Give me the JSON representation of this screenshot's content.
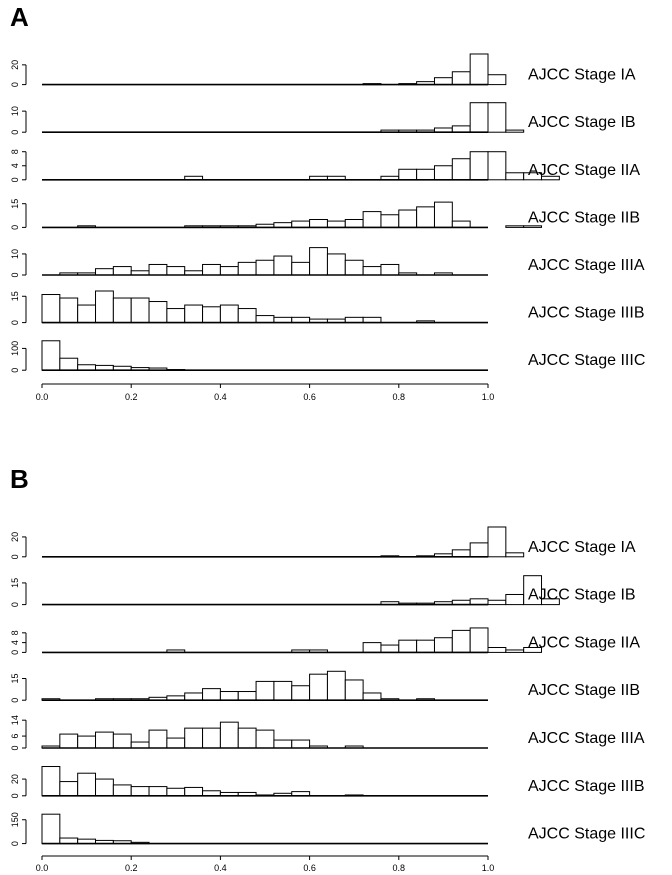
{
  "panels": [
    {
      "label": "A"
    },
    {
      "label": "B"
    }
  ],
  "chart_data": [
    {
      "type": "histogram-stack",
      "panel": "A",
      "xlim": [
        0,
        1
      ],
      "bin_width": 0.04,
      "x_ticks": [
        "0.0",
        "0.2",
        "0.4",
        "0.6",
        "0.8",
        "1.0"
      ],
      "x_tick_values": [
        0,
        0.2,
        0.4,
        0.6,
        0.8,
        1.0
      ],
      "series": [
        {
          "name": "AJCC Stage IA",
          "ymax": 32,
          "y_ticks": [
            0,
            20
          ],
          "values": [
            0,
            0,
            0,
            0,
            0,
            0,
            0,
            0,
            0,
            0,
            0,
            0,
            0,
            0,
            0,
            0,
            0,
            0,
            1,
            0,
            1,
            3,
            7,
            13,
            31,
            10
          ]
        },
        {
          "name": "AJCC Stage IB",
          "ymax": 15,
          "y_ticks": [
            0,
            10
          ],
          "values": [
            0,
            0,
            0,
            0,
            0,
            0,
            0,
            0,
            0,
            0,
            0,
            0,
            0,
            0,
            0,
            0,
            0,
            0,
            0,
            1,
            1,
            1,
            2,
            3,
            14,
            14,
            1
          ]
        },
        {
          "name": "AJCC Stage IIA",
          "ymax": 9,
          "y_ticks": [
            0,
            4,
            8
          ],
          "values": [
            0,
            0,
            0,
            0,
            0,
            0,
            0,
            0,
            1,
            0,
            0,
            0,
            0,
            0,
            0,
            1,
            1,
            0,
            0,
            1,
            3,
            3,
            4,
            6,
            8,
            8,
            2,
            2,
            1
          ]
        },
        {
          "name": "AJCC Stage IIB",
          "ymax": 20,
          "y_ticks": [
            0,
            15
          ],
          "values": [
            0,
            0,
            1,
            0,
            0,
            0,
            0,
            0,
            1,
            1,
            1,
            1,
            2,
            3,
            4,
            5,
            4,
            5,
            10,
            8,
            11,
            13,
            16,
            4,
            0,
            0,
            1,
            1
          ]
        },
        {
          "name": "AJCC Stage IIIA",
          "ymax": 15,
          "y_ticks": [
            0,
            10
          ],
          "values": [
            0,
            1,
            1,
            3,
            4,
            2,
            5,
            4,
            2,
            5,
            4,
            6,
            7,
            9,
            6,
            13,
            10,
            7,
            4,
            5,
            1,
            0,
            1,
            0,
            0
          ]
        },
        {
          "name": "AJCC Stage IIIB",
          "ymax": 18,
          "y_ticks": [
            0,
            15
          ],
          "values": [
            16,
            14,
            10,
            18,
            14,
            14,
            12,
            8,
            10,
            9,
            10,
            8,
            4,
            3,
            3,
            2,
            2,
            3,
            3,
            0,
            0,
            1
          ]
        },
        {
          "name": "AJCC Stage IIIC",
          "ymax": 145,
          "y_ticks": [
            0,
            100
          ],
          "values": [
            135,
            55,
            25,
            22,
            18,
            12,
            10,
            3
          ]
        }
      ]
    },
    {
      "type": "histogram-stack",
      "panel": "B",
      "xlim": [
        0,
        1
      ],
      "bin_width": 0.04,
      "x_ticks": [
        "0.0",
        "0.2",
        "0.4",
        "0.6",
        "0.8",
        "1.0"
      ],
      "x_tick_values": [
        0,
        0.2,
        0.4,
        0.6,
        0.8,
        1.0
      ],
      "series": [
        {
          "name": "AJCC Stage IA",
          "ymax": 32,
          "y_ticks": [
            0,
            20
          ],
          "values": [
            0,
            0,
            0,
            0,
            0,
            0,
            0,
            0,
            0,
            0,
            0,
            0,
            0,
            0,
            0,
            0,
            0,
            0,
            0,
            1,
            0,
            1,
            3,
            7,
            14,
            30,
            4
          ]
        },
        {
          "name": "AJCC Stage IB",
          "ymax": 22,
          "y_ticks": [
            0,
            15
          ],
          "values": [
            0,
            0,
            0,
            0,
            0,
            0,
            0,
            0,
            0,
            0,
            0,
            0,
            0,
            0,
            0,
            0,
            0,
            0,
            0,
            2,
            1,
            1,
            2,
            3,
            4,
            3,
            7,
            20,
            4
          ]
        },
        {
          "name": "AJCC Stage IIA",
          "ymax": 13,
          "y_ticks": [
            0,
            4,
            8
          ],
          "values": [
            0,
            0,
            0,
            0,
            0,
            0,
            0,
            1,
            0,
            0,
            0,
            0,
            0,
            0,
            1,
            1,
            0,
            0,
            4,
            3,
            5,
            5,
            6,
            9,
            10,
            2,
            1,
            2
          ]
        },
        {
          "name": "AJCC Stage IIB",
          "ymax": 22,
          "y_ticks": [
            0,
            15
          ],
          "values": [
            1,
            0,
            0,
            1,
            1,
            1,
            2,
            3,
            5,
            8,
            6,
            6,
            13,
            13,
            10,
            18,
            20,
            14,
            5,
            1,
            0,
            1
          ]
        },
        {
          "name": "AJCC Stage IIIA",
          "ymax": 16,
          "y_ticks": [
            0,
            6,
            14
          ],
          "values": [
            1,
            7,
            6,
            8,
            7,
            3,
            9,
            5,
            10,
            10,
            13,
            10,
            9,
            4,
            4,
            1,
            0,
            1
          ]
        },
        {
          "name": "AJCC Stage IIIB",
          "ymax": 38,
          "y_ticks": [
            0,
            20
          ],
          "values": [
            35,
            17,
            27,
            20,
            13,
            11,
            11,
            9,
            10,
            6,
            4,
            4,
            1,
            3,
            5,
            0,
            0,
            1,
            0,
            0
          ]
        },
        {
          "name": "AJCC Stage IIIC",
          "ymax": 200,
          "y_ticks": [
            0,
            150
          ],
          "values": [
            185,
            35,
            28,
            20,
            18,
            8
          ]
        }
      ]
    }
  ]
}
